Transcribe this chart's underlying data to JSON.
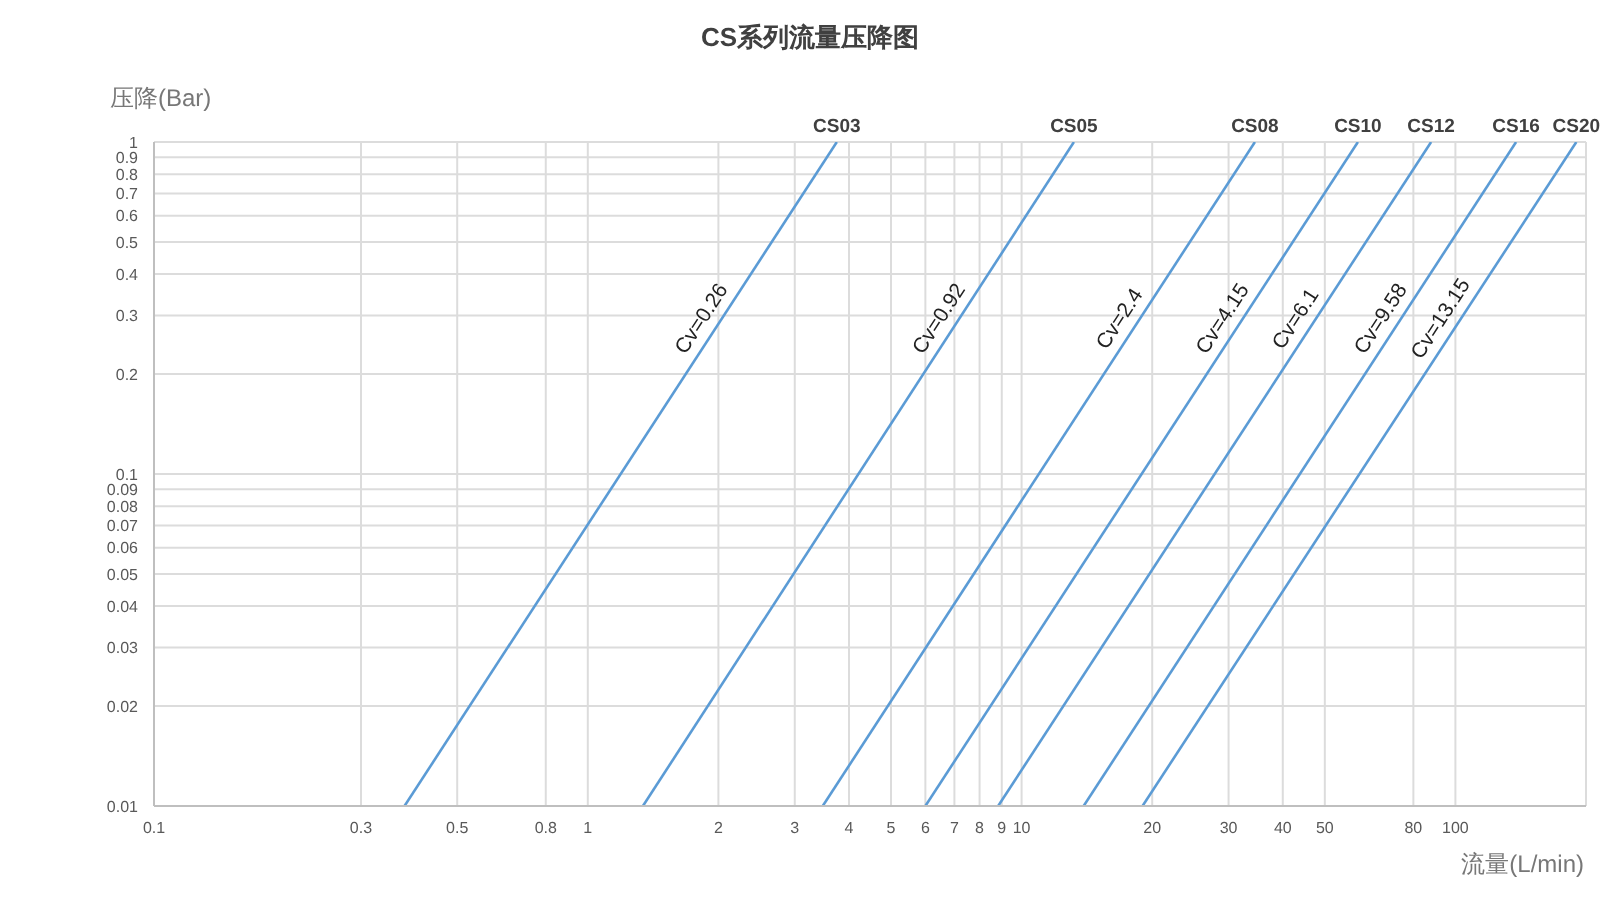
{
  "chart_data": {
    "type": "line",
    "title": "CS系列流量压降图",
    "xlabel": "流量(L/min)",
    "ylabel": "压降(Bar)",
    "log": "xy",
    "grid": true,
    "marker": "none",
    "line_style": "solid",
    "xlim": [
      0.1,
      200
    ],
    "xticks": [
      0.1,
      0.3,
      0.5,
      0.8,
      1,
      2,
      3,
      4,
      5,
      6,
      7,
      8,
      9,
      10,
      20,
      30,
      40,
      50,
      80,
      100
    ],
    "ylim": [
      0.01,
      1
    ],
    "yticks": [
      0.01,
      0.02,
      0.03,
      0.04,
      0.05,
      0.06,
      0.07,
      0.08,
      0.09,
      0.1,
      0.2,
      0.3,
      0.4,
      0.5,
      0.6,
      0.7,
      0.8,
      0.9,
      1
    ],
    "series": [
      {
        "name": "CS03",
        "color": "#5b9bd5",
        "x": [
          0.378,
          3.75
        ],
        "values": [
          0.01,
          1
        ]
      },
      {
        "name": "CS05",
        "color": "#5b9bd5",
        "x": [
          1.34,
          13.2
        ],
        "values": [
          0.01,
          1
        ]
      },
      {
        "name": "CS08",
        "color": "#5b9bd5",
        "x": [
          3.48,
          34.5
        ],
        "values": [
          0.01,
          1
        ]
      },
      {
        "name": "CS10",
        "color": "#5b9bd5",
        "x": [
          6.0,
          59.6
        ],
        "values": [
          0.01,
          1
        ]
      },
      {
        "name": "CS12",
        "color": "#5b9bd5",
        "x": [
          8.83,
          87.9
        ],
        "values": [
          0.01,
          1
        ]
      },
      {
        "name": "CS16",
        "color": "#5b9bd5",
        "x": [
          13.9,
          138
        ],
        "values": [
          0.01,
          1
        ]
      },
      {
        "name": "CS20",
        "color": "#5b9bd5",
        "x": [
          19.0,
          190
        ],
        "values": [
          0.01,
          1
        ]
      }
    ],
    "annotations": [
      "Cv=0.26",
      "Cv=0.92",
      "Cv=2.4",
      "Cv=4.15",
      "Cv=6.1",
      "Cv=9.58",
      "Cv=13.15"
    ]
  }
}
